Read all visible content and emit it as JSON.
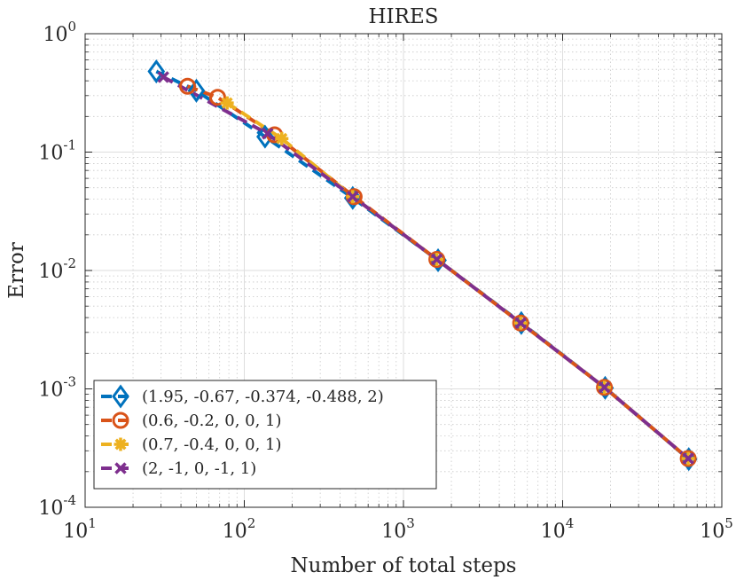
{
  "chart_data": {
    "type": "line",
    "title": "HIRES",
    "xlabel": "Number of total steps",
    "ylabel": "Error",
    "xscale": "log",
    "yscale": "log",
    "xlim": [
      10,
      100000
    ],
    "ylim": [
      0.0001,
      1
    ],
    "grid": true,
    "minor_grid": true,
    "legend_location": "bottom-left",
    "x_ticks": [
      {
        "base": "10",
        "exp": "1"
      },
      {
        "base": "10",
        "exp": "2"
      },
      {
        "base": "10",
        "exp": "3"
      },
      {
        "base": "10",
        "exp": "4"
      },
      {
        "base": "10",
        "exp": "5"
      }
    ],
    "y_ticks": [
      {
        "base": "10",
        "exp": "0"
      },
      {
        "base": "10",
        "exp": "-1"
      },
      {
        "base": "10",
        "exp": "-2"
      },
      {
        "base": "10",
        "exp": "-3"
      },
      {
        "base": "10",
        "exp": "-4"
      }
    ],
    "series": [
      {
        "name": "(1.95, -0.67, -0.374, -0.488, 2)",
        "color": "#0072BD",
        "marker": "diamond",
        "x": [
          28,
          50,
          135,
          480,
          1650,
          5500,
          18500,
          62000
        ],
        "y": [
          0.48,
          0.33,
          0.135,
          0.041,
          0.0122,
          0.0036,
          0.00102,
          0.000255
        ]
      },
      {
        "name": "(0.6, -0.2, 0, 0, 1)",
        "color": "#D95319",
        "marker": "circle",
        "x": [
          44,
          68,
          155,
          490,
          1620,
          5450,
          18300,
          61500
        ],
        "y": [
          0.36,
          0.29,
          0.14,
          0.042,
          0.0124,
          0.0036,
          0.00103,
          0.000258
        ]
      },
      {
        "name": "(0.7, -0.4, 0, 0, 1)",
        "color": "#EDB120",
        "marker": "asterisk",
        "x": [
          78,
          172,
          480,
          1620,
          5450,
          18300,
          61500
        ],
        "y": [
          0.26,
          0.13,
          0.042,
          0.0124,
          0.0036,
          0.00103,
          0.000258
        ]
      },
      {
        "name": "(2, -1, 0, -1, 1)",
        "color": "#7E2F8E",
        "marker": "x",
        "x": [
          31,
          140,
          480,
          1620,
          5450,
          18300,
          61500
        ],
        "y": [
          0.43,
          0.143,
          0.042,
          0.0124,
          0.0036,
          0.00103,
          0.000258
        ]
      }
    ]
  }
}
